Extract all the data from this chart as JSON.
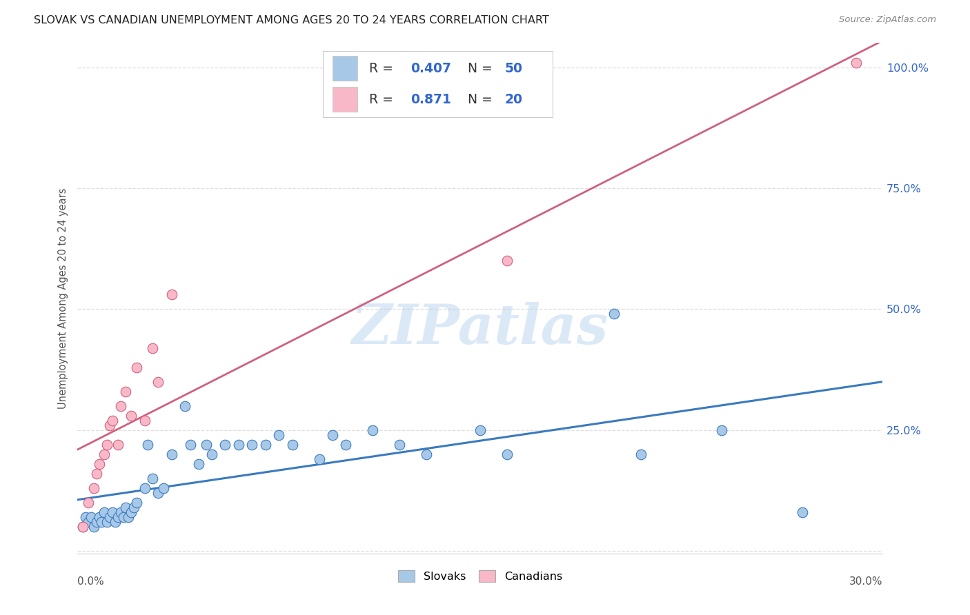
{
  "title": "SLOVAK VS CANADIAN UNEMPLOYMENT AMONG AGES 20 TO 24 YEARS CORRELATION CHART",
  "source": "Source: ZipAtlas.com",
  "ylabel": "Unemployment Among Ages 20 to 24 years",
  "xlim": [
    0.0,
    0.3
  ],
  "ylim": [
    -0.005,
    1.05
  ],
  "yticks": [
    0.0,
    0.25,
    0.5,
    0.75,
    1.0
  ],
  "ytick_labels": [
    "",
    "25.0%",
    "50.0%",
    "75.0%",
    "100.0%"
  ],
  "xtick_labels": [
    "0.0%",
    "",
    "",
    "",
    "",
    "",
    "",
    "",
    "",
    "30.0%"
  ],
  "background_color": "#ffffff",
  "grid_color": "#dddddd",
  "watermark": "ZIPatlas",
  "blue_color": "#a8c8e8",
  "pink_color": "#f8b8c8",
  "blue_line_color": "#3a7abf",
  "pink_line_color": "#d06080",
  "legend_text_color": "#3366cc",
  "slovaks_x": [
    0.002,
    0.003,
    0.004,
    0.005,
    0.006,
    0.007,
    0.008,
    0.009,
    0.01,
    0.011,
    0.012,
    0.013,
    0.014,
    0.015,
    0.016,
    0.017,
    0.018,
    0.019,
    0.02,
    0.021,
    0.022,
    0.025,
    0.026,
    0.028,
    0.03,
    0.032,
    0.035,
    0.04,
    0.042,
    0.045,
    0.048,
    0.05,
    0.055,
    0.06,
    0.065,
    0.07,
    0.075,
    0.08,
    0.09,
    0.095,
    0.1,
    0.11,
    0.12,
    0.13,
    0.15,
    0.16,
    0.2,
    0.21,
    0.24,
    0.27
  ],
  "slovaks_y": [
    0.05,
    0.07,
    0.06,
    0.07,
    0.05,
    0.06,
    0.07,
    0.06,
    0.08,
    0.06,
    0.07,
    0.08,
    0.06,
    0.07,
    0.08,
    0.07,
    0.09,
    0.07,
    0.08,
    0.09,
    0.1,
    0.13,
    0.22,
    0.15,
    0.12,
    0.13,
    0.2,
    0.3,
    0.22,
    0.18,
    0.22,
    0.2,
    0.22,
    0.22,
    0.22,
    0.22,
    0.24,
    0.22,
    0.19,
    0.24,
    0.22,
    0.25,
    0.22,
    0.2,
    0.25,
    0.2,
    0.49,
    0.2,
    0.25,
    0.08
  ],
  "canadians_x": [
    0.002,
    0.004,
    0.006,
    0.007,
    0.008,
    0.01,
    0.011,
    0.012,
    0.013,
    0.015,
    0.016,
    0.018,
    0.02,
    0.022,
    0.025,
    0.028,
    0.03,
    0.035,
    0.16,
    0.29
  ],
  "canadians_y": [
    0.05,
    0.1,
    0.13,
    0.16,
    0.18,
    0.2,
    0.22,
    0.26,
    0.27,
    0.22,
    0.3,
    0.33,
    0.28,
    0.38,
    0.27,
    0.42,
    0.35,
    0.53,
    0.6,
    1.01
  ]
}
